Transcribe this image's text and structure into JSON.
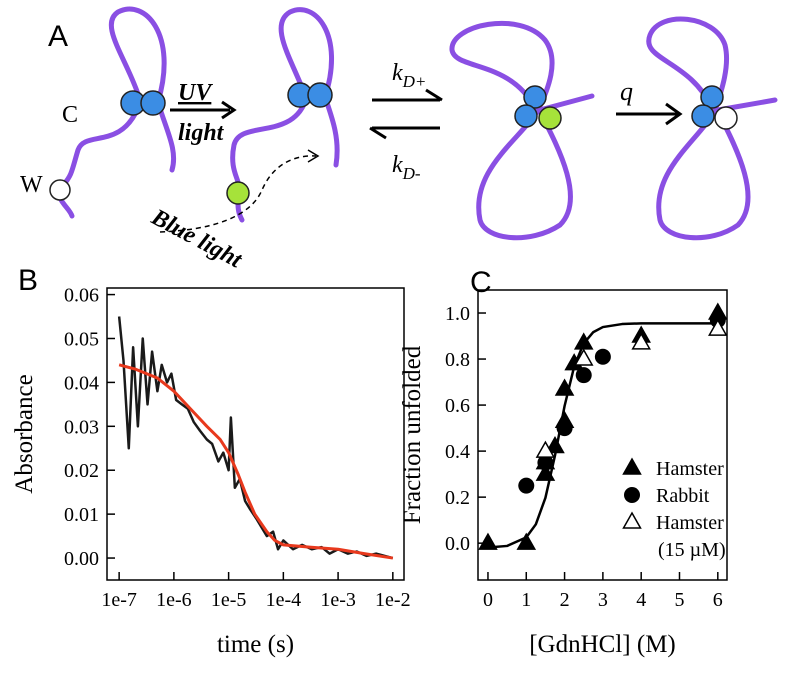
{
  "panel_a": {
    "letter": "A",
    "c_label": "C",
    "w_label": "W",
    "uv": "UV",
    "light": "light",
    "blue_light": "Blue light",
    "k_forward": {
      "main": "k",
      "sub": "D+"
    },
    "k_back": {
      "main": "k",
      "sub": "D-"
    },
    "q": "q"
  },
  "chart_data": [
    {
      "type": "line",
      "panel": "B",
      "xlabel": "time (s)",
      "ylabel": "Absorbance",
      "xscale": "log",
      "xlim": [
        6e-08,
        0.016
      ],
      "ylim": [
        -0.005,
        0.0615
      ],
      "xticks": [
        {
          "value": 1e-07,
          "label": "1e-7"
        },
        {
          "value": 1e-06,
          "label": "1e-6"
        },
        {
          "value": 1e-05,
          "label": "1e-5"
        },
        {
          "value": 0.0001,
          "label": "1e-4"
        },
        {
          "value": 0.001,
          "label": "1e-3"
        },
        {
          "value": 0.01,
          "label": "1e-2"
        }
      ],
      "yticks": [
        {
          "value": 0,
          "label": "0.00"
        },
        {
          "value": 0.01,
          "label": "0.01"
        },
        {
          "value": 0.02,
          "label": "0.02"
        },
        {
          "value": 0.03,
          "label": "0.03"
        },
        {
          "value": 0.04,
          "label": "0.04"
        },
        {
          "value": 0.05,
          "label": "0.05"
        },
        {
          "value": 0.06,
          "label": "0.06"
        }
      ],
      "series": [
        {
          "color": "#1a1a1a",
          "x": [
            1e-07,
            1.2e-07,
            1.5e-07,
            1.8e-07,
            2.2e-07,
            2.7e-07,
            3.3e-07,
            4e-07,
            5e-07,
            6e-07,
            7.5e-07,
            9e-07,
            1.1e-06,
            1.4e-06,
            1.8e-06,
            2.3e-06,
            3e-06,
            4e-06,
            5e-06,
            6.5e-06,
            8e-06,
            1e-05,
            1.1e-05,
            1.3e-05,
            1.6e-05,
            2e-05,
            2.5e-05,
            3.2e-05,
            4e-05,
            5e-05,
            6.5e-05,
            8e-05,
            0.0001,
            0.00015,
            0.00022,
            0.00033,
            0.0005,
            0.0007,
            0.001,
            0.0015,
            0.0022,
            0.0033,
            0.005,
            0.007,
            0.01
          ],
          "values": [
            0.055,
            0.045,
            0.025,
            0.048,
            0.03,
            0.05,
            0.035,
            0.047,
            0.038,
            0.044,
            0.04,
            0.042,
            0.036,
            0.035,
            0.034,
            0.031,
            0.029,
            0.027,
            0.026,
            0.022,
            0.024,
            0.02,
            0.032,
            0.016,
            0.018,
            0.013,
            0.011,
            0.009,
            0.007,
            0.005,
            0.006,
            0.002,
            0.004,
            0.002,
            0.003,
            0.002,
            0.0025,
            0.001,
            0.002,
            0.001,
            0.0015,
            0.0005,
            0.001,
            0.0005,
            0
          ]
        },
        {
          "color": "#e8391d",
          "x": [
            1e-07,
            2e-07,
            5e-07,
            1e-06,
            2e-06,
            4e-06,
            7e-06,
            1e-05,
            1.5e-05,
            2e-05,
            3e-05,
            5e-05,
            7e-05,
            0.0001,
            0.0003,
            0.001,
            0.003,
            0.01
          ],
          "values": [
            0.044,
            0.043,
            0.041,
            0.038,
            0.034,
            0.03,
            0.027,
            0.024,
            0.019,
            0.015,
            0.01,
            0.006,
            0.004,
            0.003,
            0.0025,
            0.002,
            0.001,
            0
          ]
        }
      ]
    },
    {
      "type": "scatter",
      "panel": "C",
      "xlabel": "[GdnHCl] (M)",
      "ylabel": "Fraction unfolded",
      "xlim": [
        -0.26,
        6.24
      ],
      "ylim": [
        -0.16,
        1.1
      ],
      "xticks": [
        0,
        1,
        2,
        3,
        4,
        5,
        6
      ],
      "yticks": [
        {
          "value": 0,
          "label": "0.0"
        },
        {
          "value": 0.2,
          "label": "0.2"
        },
        {
          "value": 0.4,
          "label": "0.4"
        },
        {
          "value": 0.6,
          "label": "0.6"
        },
        {
          "value": 0.8,
          "label": "0.8"
        },
        {
          "value": 1,
          "label": "1.0"
        }
      ],
      "series": [
        {
          "name": "Hamster",
          "marker": "triangle",
          "color": "#000000",
          "x": [
            0,
            1,
            1.5,
            1.5,
            1.75,
            2,
            2,
            2.25,
            2.5,
            4,
            6
          ],
          "values": [
            0,
            0,
            0.3,
            0.35,
            0.42,
            0.53,
            0.67,
            0.78,
            0.87,
            0.9,
            1
          ]
        },
        {
          "name": "Rabbit",
          "marker": "circle",
          "color": "#000000",
          "x": [
            1,
            1.5,
            2,
            2.5,
            3,
            6
          ],
          "values": [
            0.25,
            0.35,
            0.5,
            0.73,
            0.81,
            0.97
          ]
        },
        {
          "name": "Hamster (15 µM)",
          "marker": "open-triangle",
          "color": "#000000",
          "x": [
            1.5,
            2.5,
            4,
            6
          ],
          "values": [
            0.4,
            0.8,
            0.87,
            0.93
          ]
        }
      ],
      "fit": {
        "color": "#000000",
        "x": [
          0,
          0.5,
          1,
          1.25,
          1.5,
          1.75,
          2,
          2.25,
          2.5,
          2.75,
          3,
          3.5,
          4,
          5,
          6
        ],
        "values": [
          -0.019,
          -0.012,
          0.025,
          0.082,
          0.197,
          0.381,
          0.596,
          0.767,
          0.868,
          0.917,
          0.939,
          0.952,
          0.955,
          0.955,
          0.955
        ]
      }
    }
  ]
}
